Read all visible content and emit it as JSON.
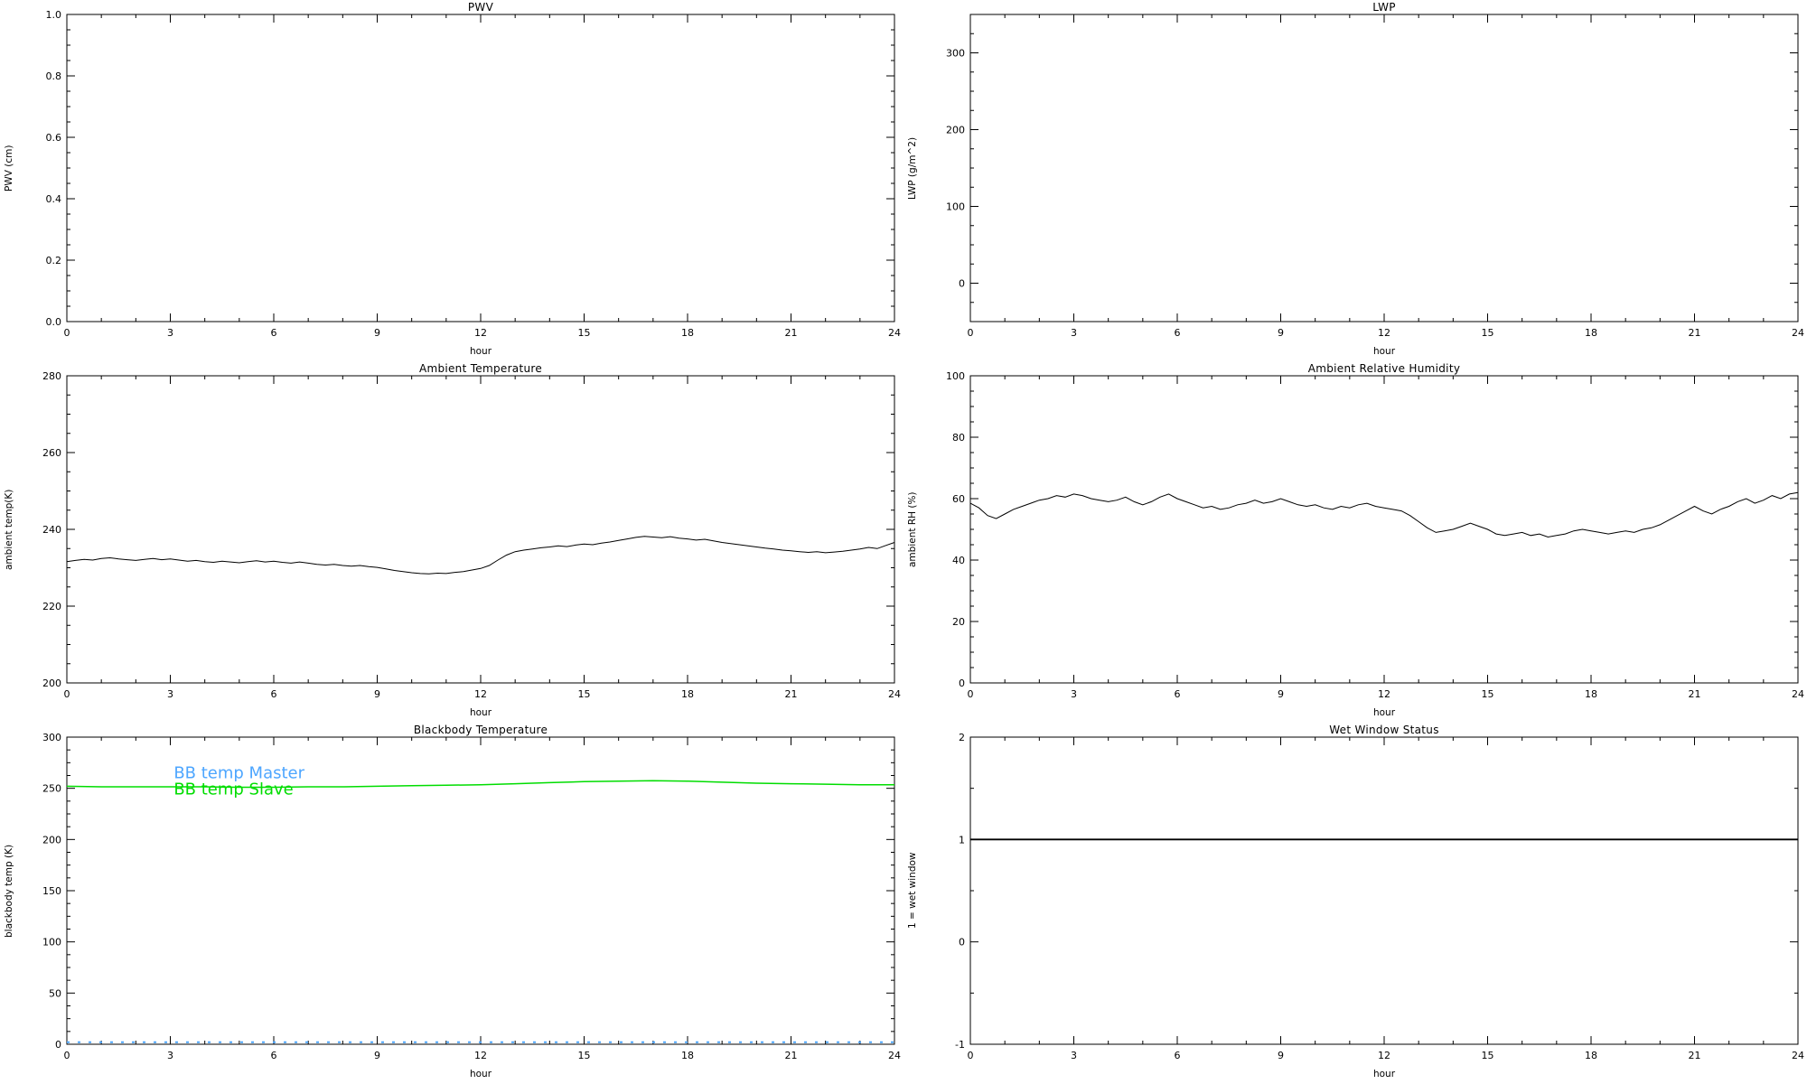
{
  "figure": {
    "background": "#ffffff",
    "axis_color": "#000000",
    "accent_green": "#00dd00",
    "accent_blue": "#4da6ff"
  },
  "chart_data": [
    {
      "id": "pwv",
      "type": "line",
      "title": "PWV",
      "xlabel": "hour",
      "ylabel": "PWV (cm)",
      "xlim": [
        0,
        24
      ],
      "ylim": [
        0,
        1
      ],
      "xticks": [
        0,
        3,
        6,
        9,
        12,
        15,
        18,
        21,
        24
      ],
      "xtick_labels": [
        "0",
        "3",
        "6",
        "9",
        "12",
        "15",
        "18",
        "21",
        "24"
      ],
      "xminor_step": 1,
      "yticks": [
        0,
        0.2,
        0.4,
        0.6,
        0.8,
        1.0
      ],
      "ytick_labels": [
        "0.0",
        "0.2",
        "0.4",
        "0.6",
        "0.8",
        "1.0"
      ],
      "yminor_step": 0.05,
      "grid": false,
      "series": []
    },
    {
      "id": "lwp",
      "type": "line",
      "title": "LWP",
      "xlabel": "hour",
      "ylabel": "LWP (g/m^2)",
      "xlim": [
        0,
        24
      ],
      "ylim": [
        -50,
        350
      ],
      "xticks": [
        0,
        3,
        6,
        9,
        12,
        15,
        18,
        21,
        24
      ],
      "xtick_labels": [
        "0",
        "3",
        "6",
        "9",
        "12",
        "15",
        "18",
        "21",
        "24"
      ],
      "xminor_step": 1,
      "yticks": [
        0,
        100,
        200,
        300
      ],
      "ytick_labels": [
        "0",
        "100",
        "200",
        "300"
      ],
      "yminor_step": 25,
      "grid": false,
      "series": []
    },
    {
      "id": "ambient-temperature",
      "type": "line",
      "title": "Ambient Temperature",
      "xlabel": "hour",
      "ylabel": "ambient temp(K)",
      "xlim": [
        0,
        24
      ],
      "ylim": [
        200,
        280
      ],
      "xticks": [
        0,
        3,
        6,
        9,
        12,
        15,
        18,
        21,
        24
      ],
      "xtick_labels": [
        "0",
        "3",
        "6",
        "9",
        "12",
        "15",
        "18",
        "21",
        "24"
      ],
      "xminor_step": 1,
      "yticks": [
        200,
        220,
        240,
        260,
        280
      ],
      "ytick_labels": [
        "200",
        "220",
        "240",
        "260",
        "280"
      ],
      "yminor_step": 5,
      "grid": false,
      "series": [
        {
          "name": "ambient temp",
          "color": "#000000",
          "width": 1,
          "x_start": 0,
          "x_step": 0.25,
          "y": [
            231.6,
            231.9,
            232.2,
            232.0,
            232.4,
            232.6,
            232.3,
            232.1,
            231.9,
            232.2,
            232.4,
            232.1,
            232.3,
            232.0,
            231.7,
            231.9,
            231.6,
            231.4,
            231.7,
            231.5,
            231.3,
            231.6,
            231.8,
            231.5,
            231.7,
            231.4,
            231.2,
            231.5,
            231.2,
            230.9,
            230.7,
            230.9,
            230.6,
            230.4,
            230.6,
            230.3,
            230.1,
            229.7,
            229.3,
            229.0,
            228.7,
            228.5,
            228.4,
            228.6,
            228.5,
            228.8,
            229.0,
            229.4,
            229.8,
            230.6,
            232.0,
            233.3,
            234.2,
            234.6,
            234.9,
            235.2,
            235.4,
            235.7,
            235.5,
            235.9,
            236.2,
            236.0,
            236.4,
            236.7,
            237.1,
            237.5,
            237.9,
            238.2,
            238.0,
            237.8,
            238.1,
            237.7,
            237.5,
            237.2,
            237.4,
            237.0,
            236.6,
            236.3,
            236.0,
            235.7,
            235.4,
            235.1,
            234.9,
            234.6,
            234.4,
            234.2,
            234.0,
            234.2,
            233.9,
            234.1,
            234.3,
            234.6,
            234.9,
            235.3,
            235.0,
            235.8,
            236.6
          ]
        }
      ]
    },
    {
      "id": "ambient-relative-humidity",
      "type": "line",
      "title": "Ambient Relative Humidity",
      "xlabel": "hour",
      "ylabel": "ambient RH (%)",
      "xlim": [
        0,
        24
      ],
      "ylim": [
        0,
        100
      ],
      "xticks": [
        0,
        3,
        6,
        9,
        12,
        15,
        18,
        21,
        24
      ],
      "xtick_labels": [
        "0",
        "3",
        "6",
        "9",
        "12",
        "15",
        "18",
        "21",
        "24"
      ],
      "xminor_step": 1,
      "yticks": [
        0,
        20,
        40,
        60,
        80,
        100
      ],
      "ytick_labels": [
        "0",
        "20",
        "40",
        "60",
        "80",
        "100"
      ],
      "yminor_step": 5,
      "grid": false,
      "series": [
        {
          "name": "ambient RH",
          "color": "#000000",
          "width": 1,
          "x_start": 0,
          "x_step": 0.25,
          "y": [
            58.5,
            57.0,
            54.5,
            53.5,
            55.0,
            56.5,
            57.5,
            58.5,
            59.5,
            60.0,
            61.0,
            60.5,
            61.5,
            61.0,
            60.0,
            59.5,
            59.0,
            59.5,
            60.5,
            59.0,
            58.0,
            59.0,
            60.5,
            61.5,
            60.0,
            59.0,
            58.0,
            57.0,
            57.5,
            56.5,
            57.0,
            58.0,
            58.5,
            59.5,
            58.5,
            59.0,
            60.0,
            59.0,
            58.0,
            57.5,
            58.0,
            57.0,
            56.5,
            57.5,
            57.0,
            58.0,
            58.5,
            57.5,
            57.0,
            56.5,
            56.0,
            54.5,
            52.5,
            50.5,
            49.0,
            49.5,
            50.0,
            51.0,
            52.0,
            51.0,
            50.0,
            48.5,
            48.0,
            48.5,
            49.0,
            48.0,
            48.5,
            47.5,
            48.0,
            48.5,
            49.5,
            50.0,
            49.5,
            49.0,
            48.5,
            49.0,
            49.5,
            49.0,
            50.0,
            50.5,
            51.5,
            53.0,
            54.5,
            56.0,
            57.5,
            56.0,
            55.0,
            56.5,
            57.5,
            59.0,
            60.0,
            58.5,
            59.5,
            61.0,
            60.0,
            61.5,
            62.0
          ]
        }
      ]
    },
    {
      "id": "blackbody-temperature",
      "type": "line",
      "title": "Blackbody Temperature",
      "xlabel": "hour",
      "ylabel": "blackbody temp (K)",
      "xlim": [
        0,
        24
      ],
      "ylim": [
        0,
        300
      ],
      "xticks": [
        0,
        3,
        6,
        9,
        12,
        15,
        18,
        21,
        24
      ],
      "xtick_labels": [
        "0",
        "3",
        "6",
        "9",
        "12",
        "15",
        "18",
        "21",
        "24"
      ],
      "xminor_step": 1,
      "yticks": [
        0,
        50,
        100,
        150,
        200,
        250,
        300
      ],
      "ytick_labels": [
        "0",
        "50",
        "100",
        "150",
        "200",
        "250",
        "300"
      ],
      "yminor_step": 12.5,
      "grid": false,
      "legend_font_size": 18,
      "legend": [
        {
          "label": "BB temp Master",
          "color": "#4da6ff",
          "x": 3.1,
          "y": 260
        },
        {
          "label": "BB temp Slave",
          "color": "#00dd00",
          "x": 3.1,
          "y": 244
        }
      ],
      "series": [
        {
          "name": "BB temp Master",
          "color": "#4da6ff",
          "width": 2,
          "dash": "3 9",
          "x": [
            0,
            24
          ],
          "y": [
            2,
            2
          ]
        },
        {
          "name": "BB temp Slave",
          "color": "#00dd00",
          "width": 1.5,
          "x_start": 0,
          "x_step": 1,
          "y": [
            252.0,
            251.5,
            251.5,
            251.5,
            251.5,
            251.0,
            251.0,
            251.5,
            251.5,
            252.0,
            252.5,
            253.0,
            253.5,
            254.5,
            255.5,
            256.5,
            257.0,
            257.5,
            257.0,
            256.0,
            255.0,
            254.5,
            254.0,
            253.5,
            253.5
          ]
        }
      ]
    },
    {
      "id": "wet-window-status",
      "type": "line",
      "title": "Wet Window Status",
      "xlabel": "hour",
      "ylabel": "1 = wet window",
      "xlim": [
        0,
        24
      ],
      "ylim": [
        -1,
        2
      ],
      "xticks": [
        0,
        3,
        6,
        9,
        12,
        15,
        18,
        21,
        24
      ],
      "xtick_labels": [
        "0",
        "3",
        "6",
        "9",
        "12",
        "15",
        "18",
        "21",
        "24"
      ],
      "xminor_step": 1,
      "yticks": [
        -1,
        0,
        1,
        2
      ],
      "ytick_labels": [
        "-1",
        "0",
        "1",
        "2"
      ],
      "yminor_step": 0.5,
      "grid": false,
      "series": [
        {
          "name": "wet window flag",
          "color": "#000000",
          "width": 1.8,
          "x": [
            0,
            24
          ],
          "y": [
            1,
            1
          ]
        }
      ]
    }
  ]
}
